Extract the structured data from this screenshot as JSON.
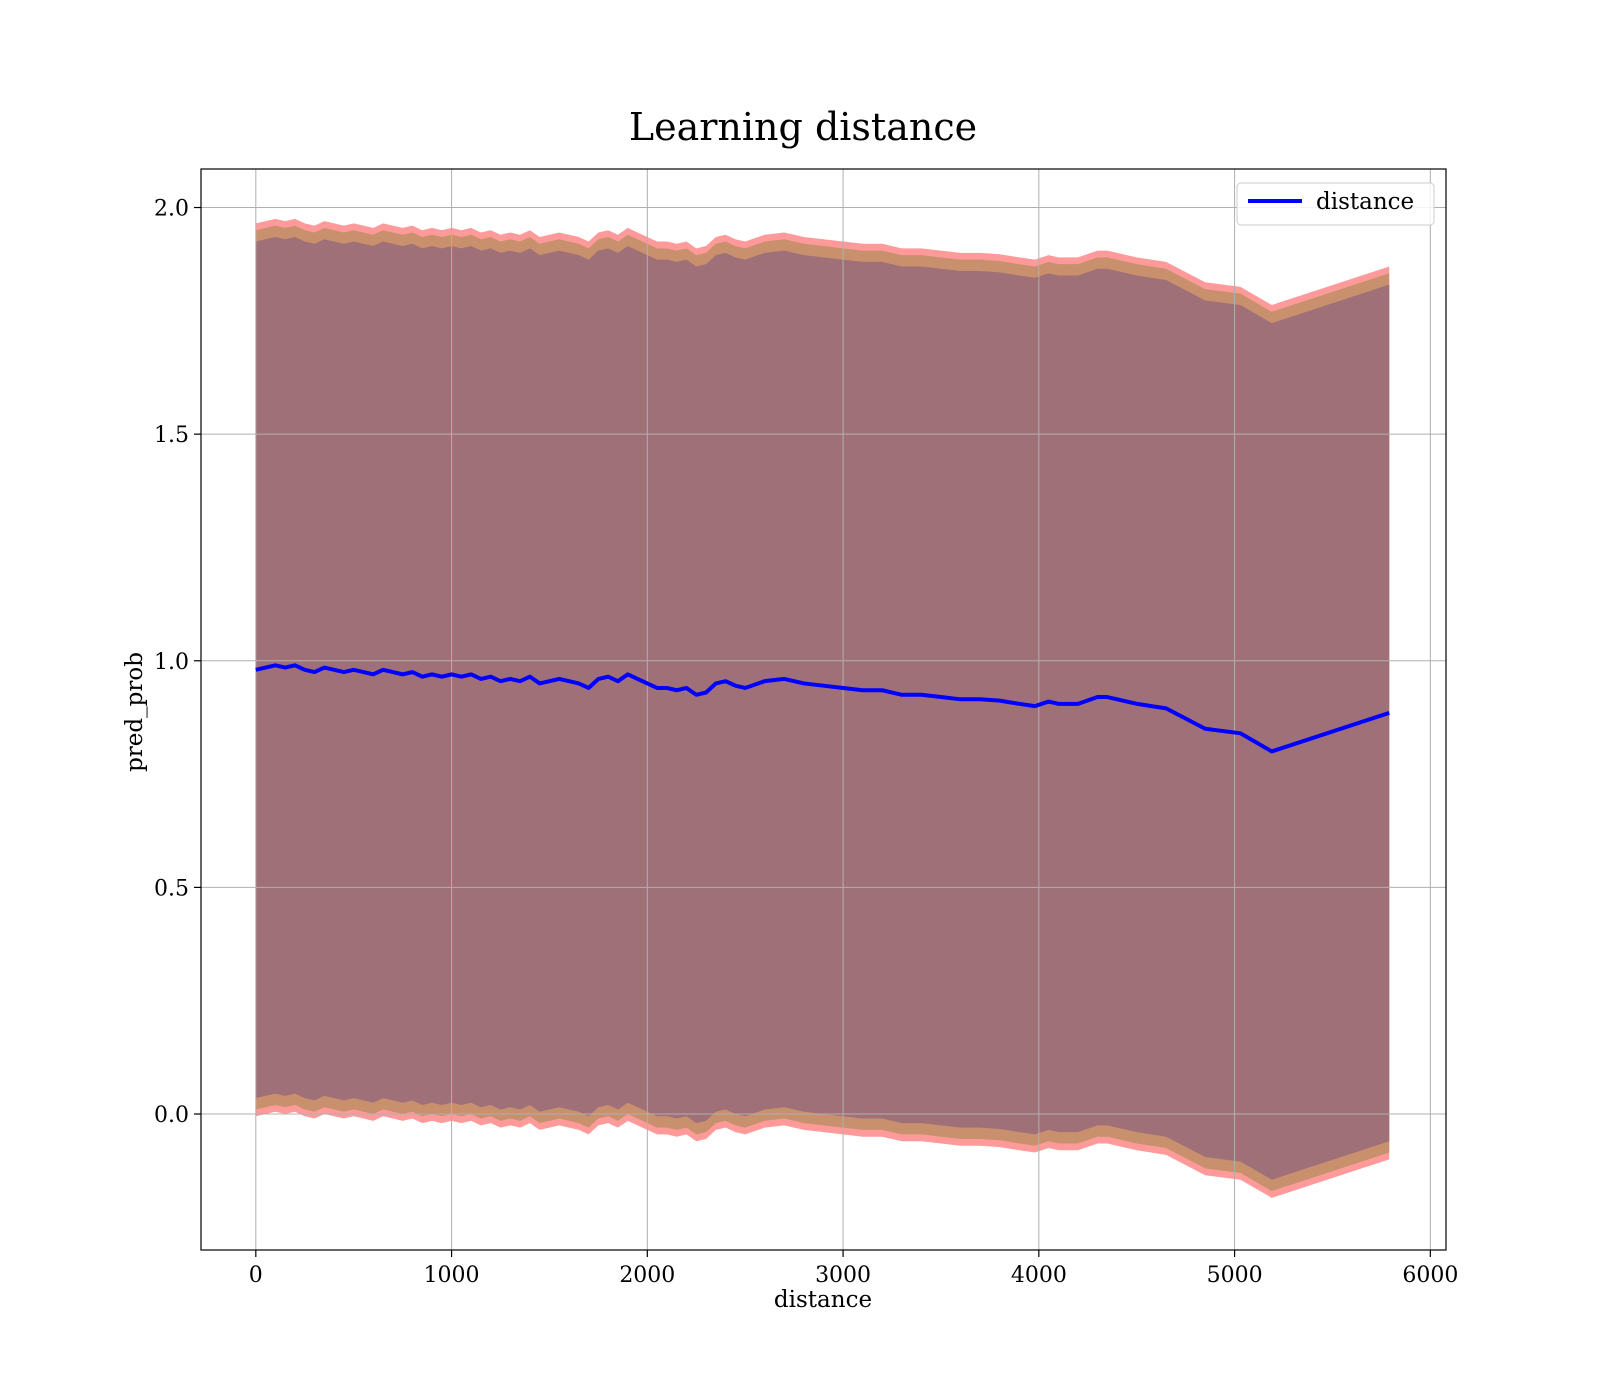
{
  "chart_data": {
    "type": "line",
    "title": "Learning distance",
    "xlabel": "distance",
    "ylabel": "pred_prob",
    "xlim": [
      -280,
      6080
    ],
    "ylim": [
      -0.3,
      2.085
    ],
    "xticks": [
      0,
      1000,
      2000,
      3000,
      4000,
      5000,
      6000
    ],
    "yticks": [
      0.0,
      0.5,
      1.0,
      1.5,
      2.0
    ],
    "xtick_labels": [
      "0",
      "1000",
      "2000",
      "3000",
      "4000",
      "5000",
      "6000"
    ],
    "ytick_labels": [
      "0.0",
      "0.5",
      "1.0",
      "1.5",
      "2.0"
    ],
    "grid": true,
    "legend": {
      "position": "top-right",
      "entries": [
        "distance"
      ]
    },
    "colors": {
      "line": "#0000ff",
      "band_outer": "#ff9a9a",
      "band_middle": "#c9906e",
      "band_inner": "#a07078",
      "grid": "#b0b0b0"
    },
    "series": [
      {
        "name": "distance",
        "x": [
          0,
          50,
          100,
          150,
          200,
          250,
          300,
          350,
          400,
          450,
          500,
          550,
          600,
          650,
          700,
          750,
          800,
          850,
          900,
          950,
          1000,
          1050,
          1100,
          1150,
          1200,
          1250,
          1300,
          1350,
          1400,
          1450,
          1500,
          1550,
          1600,
          1650,
          1700,
          1750,
          1800,
          1850,
          1900,
          1950,
          2000,
          2050,
          2100,
          2150,
          2200,
          2250,
          2300,
          2350,
          2400,
          2450,
          2500,
          2600,
          2700,
          2800,
          2900,
          3000,
          3100,
          3200,
          3300,
          3400,
          3500,
          3600,
          3700,
          3800,
          3900,
          3980,
          4050,
          4100,
          4200,
          4300,
          4350,
          4400,
          4500,
          4650,
          4850,
          5030,
          5190,
          5790
        ],
        "y": [
          0.98,
          0.985,
          0.99,
          0.985,
          0.99,
          0.98,
          0.975,
          0.985,
          0.98,
          0.975,
          0.98,
          0.975,
          0.97,
          0.98,
          0.975,
          0.97,
          0.975,
          0.965,
          0.97,
          0.965,
          0.97,
          0.965,
          0.97,
          0.96,
          0.965,
          0.955,
          0.96,
          0.955,
          0.965,
          0.95,
          0.955,
          0.96,
          0.955,
          0.95,
          0.94,
          0.96,
          0.965,
          0.955,
          0.97,
          0.96,
          0.95,
          0.94,
          0.94,
          0.935,
          0.94,
          0.925,
          0.93,
          0.95,
          0.955,
          0.945,
          0.94,
          0.955,
          0.96,
          0.95,
          0.945,
          0.94,
          0.935,
          0.935,
          0.925,
          0.925,
          0.92,
          0.915,
          0.915,
          0.912,
          0.905,
          0.9,
          0.91,
          0.905,
          0.905,
          0.92,
          0.92,
          0.915,
          0.905,
          0.895,
          0.85,
          0.84,
          0.8,
          0.885
        ],
        "band_inner_halfwidth": 0.945,
        "band_middle_halfwidth": 0.97,
        "band_outer_halfwidth": 0.985
      }
    ]
  }
}
